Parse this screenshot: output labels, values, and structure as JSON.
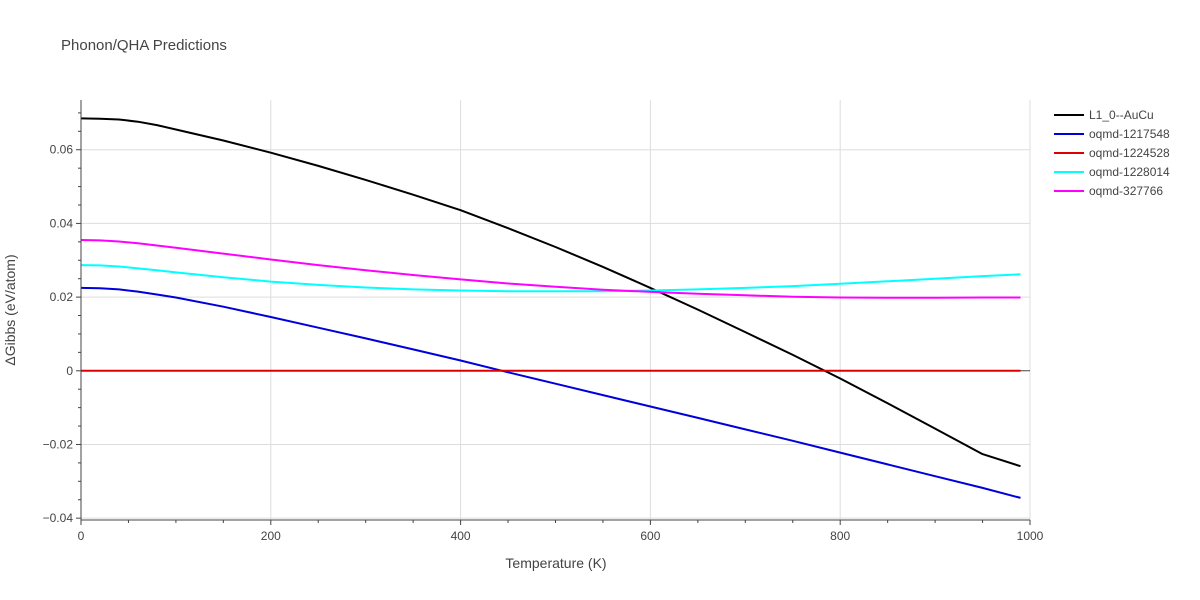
{
  "chart_data": {
    "type": "line",
    "title": "Phonon/QHA Predictions",
    "xlabel": "Temperature (K)",
    "ylabel": "ΔGibbs (eV/atom)",
    "xlim": [
      0,
      1000
    ],
    "ylim": [
      -0.0405,
      0.0735
    ],
    "xticks": [
      0,
      200,
      400,
      600,
      800,
      1000
    ],
    "xtick_labels": [
      "0",
      "200",
      "400",
      "600",
      "800",
      "1000"
    ],
    "yticks": [
      -0.04,
      -0.02,
      0,
      0.02,
      0.04,
      0.06
    ],
    "ytick_labels": [
      "−0.04",
      "−0.02",
      "0",
      "0.02",
      "0.04",
      "0.06"
    ],
    "grid": true,
    "legend_position": "top-right",
    "series": [
      {
        "name": "L1_0--AuCu",
        "color": "#000000",
        "x": [
          0,
          20,
          40,
          60,
          80,
          100,
          150,
          200,
          250,
          300,
          350,
          400,
          450,
          500,
          550,
          600,
          650,
          700,
          750,
          800,
          850,
          900,
          950,
          990
        ],
        "y": [
          0.0685,
          0.0684,
          0.0682,
          0.0676,
          0.0667,
          0.0655,
          0.0625,
          0.0592,
          0.0556,
          0.0518,
          0.0478,
          0.0436,
          0.0387,
          0.0336,
          0.0282,
          0.0225,
          0.0166,
          0.0105,
          0.0043,
          -0.0021,
          -0.0088,
          -0.0157,
          -0.0226,
          -0.0259
        ]
      },
      {
        "name": "oqmd-1217548",
        "color": "#0000dd",
        "x": [
          0,
          20,
          40,
          60,
          80,
          100,
          150,
          200,
          250,
          300,
          350,
          400,
          450,
          500,
          550,
          600,
          650,
          700,
          750,
          800,
          850,
          900,
          950,
          990
        ],
        "y": [
          0.0225,
          0.0224,
          0.0221,
          0.0215,
          0.0207,
          0.0199,
          0.0174,
          0.0146,
          0.0117,
          0.0088,
          0.0058,
          0.0028,
          -0.0004,
          -0.0035,
          -0.0066,
          -0.0097,
          -0.0128,
          -0.0159,
          -0.019,
          -0.0222,
          -0.0254,
          -0.0286,
          -0.0318,
          -0.0345
        ]
      },
      {
        "name": "oqmd-1224528",
        "color": "#dd0000",
        "x": [
          0,
          990
        ],
        "y": [
          0,
          0
        ]
      },
      {
        "name": "oqmd-1228014",
        "color": "#00ffff",
        "x": [
          0,
          20,
          40,
          60,
          80,
          100,
          150,
          200,
          250,
          300,
          350,
          400,
          450,
          500,
          550,
          600,
          650,
          700,
          750,
          800,
          850,
          900,
          950,
          990
        ],
        "y": [
          0.0287,
          0.0286,
          0.0283,
          0.0278,
          0.0273,
          0.0267,
          0.0254,
          0.0242,
          0.0233,
          0.0226,
          0.0221,
          0.0218,
          0.0216,
          0.0216,
          0.0216,
          0.0218,
          0.0221,
          0.0225,
          0.023,
          0.0236,
          0.0243,
          0.025,
          0.0257,
          0.0262
        ]
      },
      {
        "name": "oqmd-327766",
        "color": "#ff00ff",
        "x": [
          0,
          20,
          40,
          60,
          80,
          100,
          150,
          200,
          250,
          300,
          350,
          400,
          450,
          500,
          550,
          600,
          650,
          700,
          750,
          800,
          850,
          900,
          950,
          990
        ],
        "y": [
          0.0355,
          0.0354,
          0.0351,
          0.0346,
          0.034,
          0.0334,
          0.0318,
          0.0302,
          0.0287,
          0.0273,
          0.026,
          0.0248,
          0.0237,
          0.0228,
          0.022,
          0.0214,
          0.0209,
          0.0205,
          0.0201,
          0.0199,
          0.0198,
          0.0198,
          0.0199,
          0.0199
        ]
      }
    ]
  }
}
